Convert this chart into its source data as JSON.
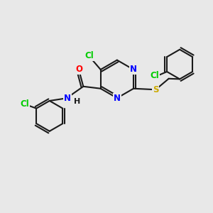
{
  "bg_color": "#e8e8e8",
  "bond_color": "#1a1a1a",
  "atom_colors": {
    "Cl": "#00cc00",
    "N": "#0000ff",
    "O": "#ff0000",
    "S": "#ccaa00",
    "C": "#1a1a1a",
    "H": "#1a1a1a"
  },
  "bond_width": 1.5,
  "font_size": 8.5
}
